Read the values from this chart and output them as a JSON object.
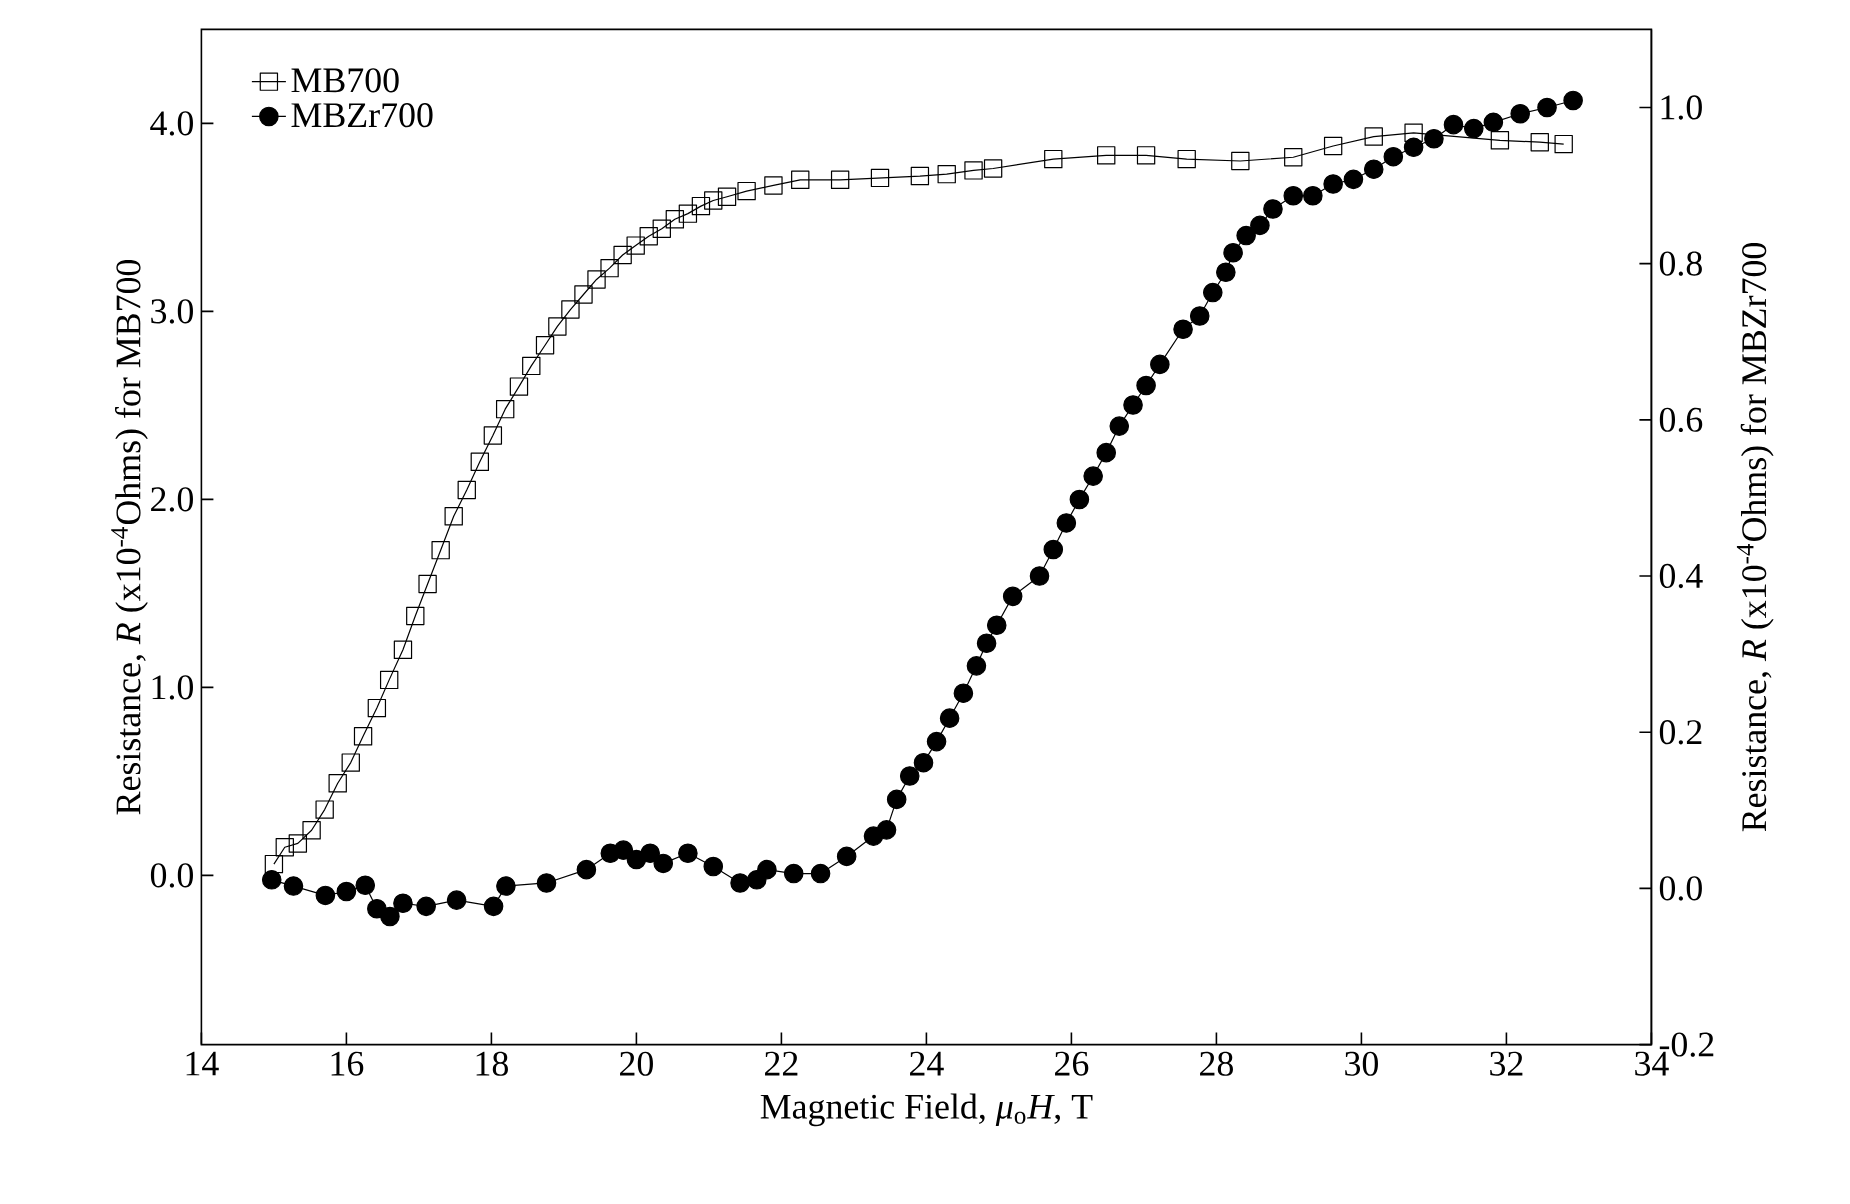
{
  "chart_data": {
    "type": "line",
    "xlabel": "Magnetic Field, *μ*$_{o}$*H*, T",
    "ylabel": "Resistance, *R* (x10$^{-4}$Ohms) for MB700",
    "y2label": "Resistance, *R* (x10$^{-4}$Ohms) for MBZr700",
    "xlim": [
      14,
      34
    ],
    "xticks": [
      14,
      16,
      18,
      20,
      22,
      24,
      26,
      28,
      30,
      32,
      34
    ],
    "ylim": [
      -0.9,
      4.5
    ],
    "yticks": [
      {
        "value": 0,
        "label": "0.0"
      },
      {
        "value": 1,
        "label": "1.0"
      },
      {
        "value": 2,
        "label": "2.0"
      },
      {
        "value": 3,
        "label": "3.0"
      },
      {
        "value": 4,
        "label": "4.0"
      }
    ],
    "y2lim": [
      -0.2,
      1.1
    ],
    "y2ticks": [
      {
        "value": -0.2,
        "label": "-0.2"
      },
      {
        "value": 0,
        "label": "0.0"
      },
      {
        "value": 0.2,
        "label": "0.2"
      },
      {
        "value": 0.4,
        "label": "0.4"
      },
      {
        "value": 0.6,
        "label": "0.6"
      },
      {
        "value": 0.8,
        "label": "0.8"
      },
      {
        "value": 1.0,
        "label": "1.0"
      }
    ],
    "legend": "top left",
    "grid": false,
    "series": [
      {
        "name": "MB700",
        "color": "#000000",
        "marker": "square",
        "x": [
          15.0,
          15.15,
          15.33,
          15.52,
          15.7,
          15.88,
          16.06,
          16.23,
          16.42,
          16.59,
          16.78,
          16.95,
          17.12,
          17.3,
          17.48,
          17.66,
          17.84,
          18.02,
          18.19,
          18.38,
          18.55,
          18.74,
          18.91,
          19.09,
          19.27,
          19.45,
          19.63,
          19.81,
          19.99,
          20.17,
          20.35,
          20.53,
          20.71,
          20.89,
          21.06,
          21.25,
          21.52,
          21.89,
          22.26,
          22.81,
          23.36,
          23.91,
          24.28,
          24.65,
          24.92,
          25.75,
          26.48,
          27.03,
          27.59,
          28.33,
          29.06,
          29.61,
          30.17,
          30.72,
          31.27,
          31.91,
          32.46,
          32.79
        ],
        "values": [
          0.06,
          0.15,
          0.17,
          0.24,
          0.35,
          0.49,
          0.6,
          0.74,
          0.89,
          1.04,
          1.2,
          1.38,
          1.55,
          1.73,
          1.91,
          2.05,
          2.2,
          2.34,
          2.48,
          2.6,
          2.71,
          2.82,
          2.92,
          3.01,
          3.09,
          3.17,
          3.23,
          3.3,
          3.35,
          3.4,
          3.44,
          3.49,
          3.52,
          3.56,
          3.59,
          3.61,
          3.64,
          3.67,
          3.7,
          3.7,
          3.71,
          3.72,
          3.73,
          3.75,
          3.76,
          3.81,
          3.83,
          3.83,
          3.81,
          3.8,
          3.82,
          3.88,
          3.93,
          3.95,
          null,
          3.91,
          3.9,
          3.89
        ]
      },
      {
        "name": "MBZr700",
        "color": "#000000",
        "marker": "circle",
        "axis": "y2",
        "x": [
          14.97,
          15.27,
          15.71,
          16.0,
          16.26,
          16.42,
          16.6,
          16.78,
          17.1,
          17.52,
          18.03,
          18.2,
          18.76,
          19.31,
          19.64,
          19.82,
          20.0,
          20.19,
          20.37,
          20.71,
          21.06,
          21.43,
          21.66,
          21.8,
          22.17,
          22.54,
          22.9,
          23.27,
          23.45,
          23.59,
          23.77,
          23.96,
          24.14,
          24.32,
          24.51,
          24.69,
          24.83,
          24.97,
          25.19,
          25.56,
          25.75,
          25.93,
          26.11,
          26.3,
          26.48,
          26.66,
          26.85,
          27.03,
          27.22,
          27.54,
          27.77,
          27.95,
          28.13,
          28.23,
          28.41,
          28.6,
          28.78,
          29.06,
          29.33,
          29.61,
          29.89,
          30.17,
          30.44,
          30.72,
          31.0,
          31.27,
          31.55,
          31.82,
          32.19,
          32.56,
          32.92
        ],
        "values": [
          0.011,
          0.003,
          -0.009,
          -0.004,
          0.004,
          -0.026,
          -0.036,
          -0.019,
          -0.023,
          -0.015,
          -0.023,
          0.003,
          0.007,
          0.024,
          0.045,
          0.049,
          0.037,
          0.045,
          0.032,
          0.045,
          0.028,
          0.007,
          0.011,
          0.024,
          0.019,
          0.019,
          0.041,
          0.067,
          0.075,
          0.114,
          0.144,
          0.161,
          0.188,
          0.218,
          0.25,
          0.285,
          0.314,
          0.337,
          0.374,
          0.4,
          0.434,
          0.468,
          0.498,
          0.528,
          0.558,
          0.592,
          0.619,
          0.644,
          0.671,
          0.716,
          0.733,
          0.763,
          0.789,
          0.814,
          0.836,
          0.849,
          0.87,
          0.887,
          0.887,
          0.902,
          0.908,
          0.921,
          0.937,
          0.949,
          0.96,
          0.978,
          0.973,
          0.981,
          0.992,
          1.0,
          1.009
        ]
      }
    ]
  }
}
